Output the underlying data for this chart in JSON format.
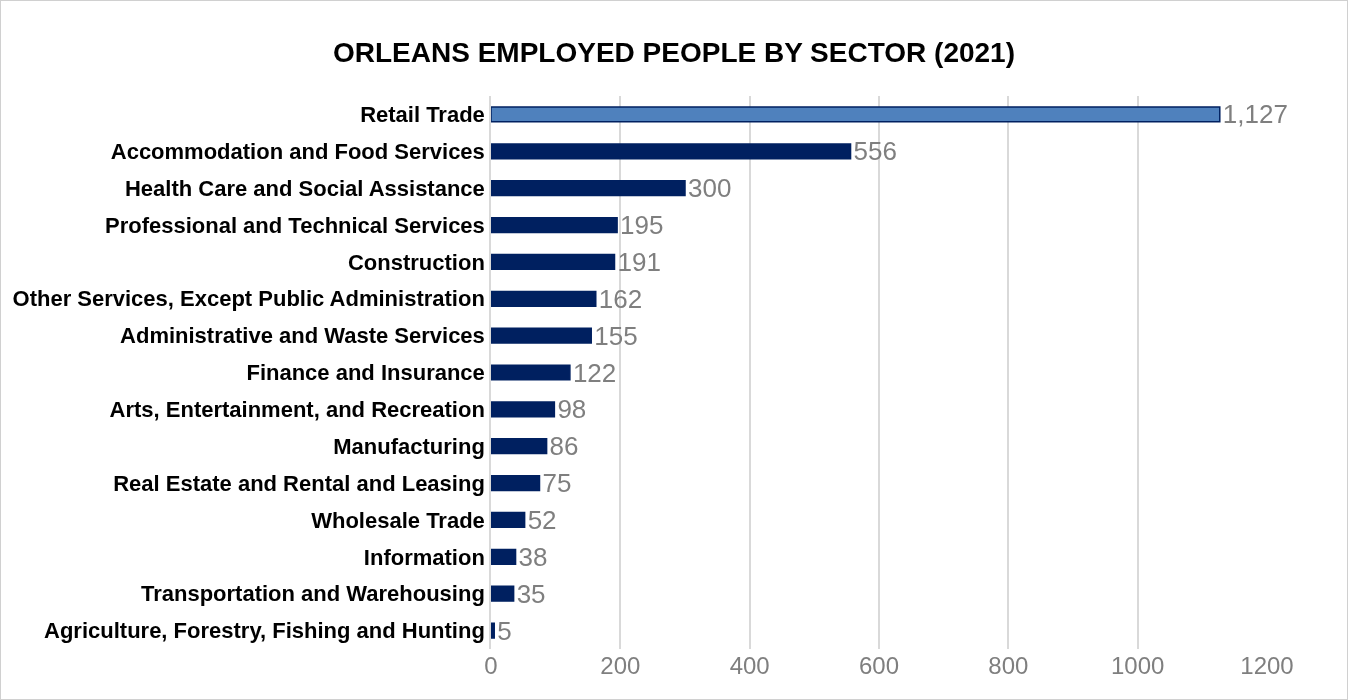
{
  "chart_data": {
    "type": "bar",
    "orientation": "horizontal",
    "title": "ORLEANS EMPLOYED PEOPLE BY SECTOR (2021)",
    "categories": [
      "Retail Trade",
      "Accommodation and Food Services",
      "Health Care and Social Assistance",
      "Professional and Technical Services",
      "Construction",
      "Other Services, Except Public Administration",
      "Administrative and Waste Services",
      "Finance and Insurance",
      "Arts, Entertainment, and Recreation",
      "Manufacturing",
      "Real Estate and Rental and Leasing",
      "Wholesale Trade",
      "Information",
      "Transportation and Warehousing",
      "Agriculture, Forestry, Fishing and Hunting"
    ],
    "values": [
      1127,
      556,
      300,
      195,
      191,
      162,
      155,
      122,
      98,
      86,
      75,
      52,
      38,
      35,
      5
    ],
    "value_labels": [
      "1,127",
      "556",
      "300",
      "195",
      "191",
      "162",
      "155",
      "122",
      "98",
      "86",
      "75",
      "52",
      "38",
      "35",
      "5"
    ],
    "colors": [
      "#4f81bd",
      "#002060",
      "#002060",
      "#002060",
      "#002060",
      "#002060",
      "#002060",
      "#002060",
      "#002060",
      "#002060",
      "#002060",
      "#002060",
      "#002060",
      "#002060",
      "#002060"
    ],
    "xlim": [
      0,
      1200
    ],
    "xticks": [
      0,
      200,
      400,
      600,
      800,
      1000,
      1200
    ],
    "grid": "x"
  }
}
